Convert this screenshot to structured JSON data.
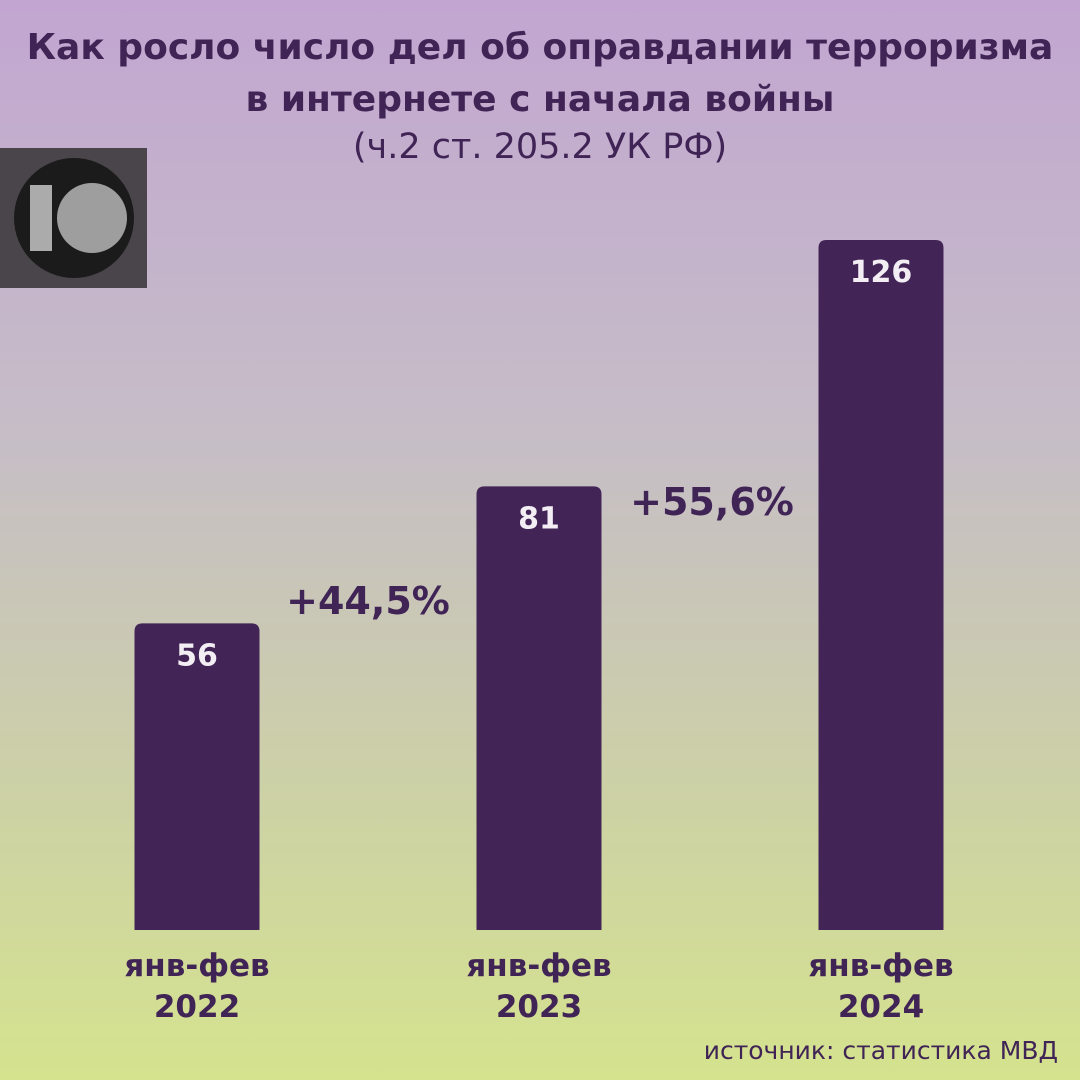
{
  "chart_data": {
    "type": "bar",
    "title_line1": "Как росло число дел об оправдании терроризма",
    "title_line2": "в интернете с начала войны",
    "subtitle": "(ч.2 ст. 205.2 УК РФ)",
    "categories": [
      {
        "line1": "янв-фев",
        "line2": "2022"
      },
      {
        "line1": "янв-фев",
        "line2": "2023"
      },
      {
        "line1": "янв-фев",
        "line2": "2024"
      }
    ],
    "values": [
      56,
      81,
      126
    ],
    "value_labels": [
      "56",
      "81",
      "126"
    ],
    "growth_labels": [
      "+44,5%",
      "+55,6%"
    ],
    "bar_color": "#422456",
    "value_label_color": "#f2eef4",
    "ylim": [
      0,
      126
    ],
    "grid": false
  },
  "source": "источник: статистика МВД",
  "logo": {
    "icon": "10-logo-icon"
  }
}
